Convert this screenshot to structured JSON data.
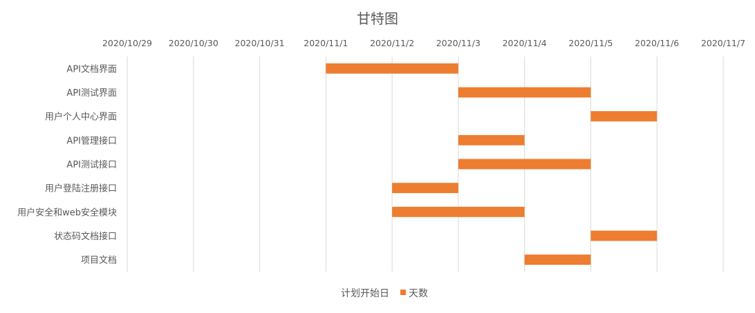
{
  "chart_data": {
    "type": "bar",
    "orientation": "horizontal-stacked",
    "title": "甘特图",
    "x_ticks": [
      "2020/10/29",
      "2020/10/30",
      "2020/10/31",
      "2020/11/1",
      "2020/11/2",
      "2020/11/3",
      "2020/11/4",
      "2020/11/5",
      "2020/11/6",
      "2020/11/7"
    ],
    "xlim": [
      "2020/10/29",
      "2020/11/7"
    ],
    "x_axis_position": "top",
    "grid": true,
    "legend_position": "bottom",
    "categories": [
      "API文档界面",
      "API测试界面",
      "用户个人中心界面",
      "API管理接口",
      "API测试接口",
      "用户登陆注册接口",
      "用户安全和web安全模块",
      "状态码文档接口",
      "项目文档"
    ],
    "series": [
      {
        "name": "计划开始日",
        "values": [
          "2020/11/1",
          "2020/11/3",
          "2020/11/5",
          "2020/11/3",
          "2020/11/3",
          "2020/11/2",
          "2020/11/2",
          "2020/11/5",
          "2020/11/4"
        ],
        "color": "none"
      },
      {
        "name": "天数",
        "values": [
          2,
          2,
          1,
          1,
          2,
          1,
          2,
          1,
          1
        ],
        "color": "#ED7D31"
      }
    ]
  }
}
